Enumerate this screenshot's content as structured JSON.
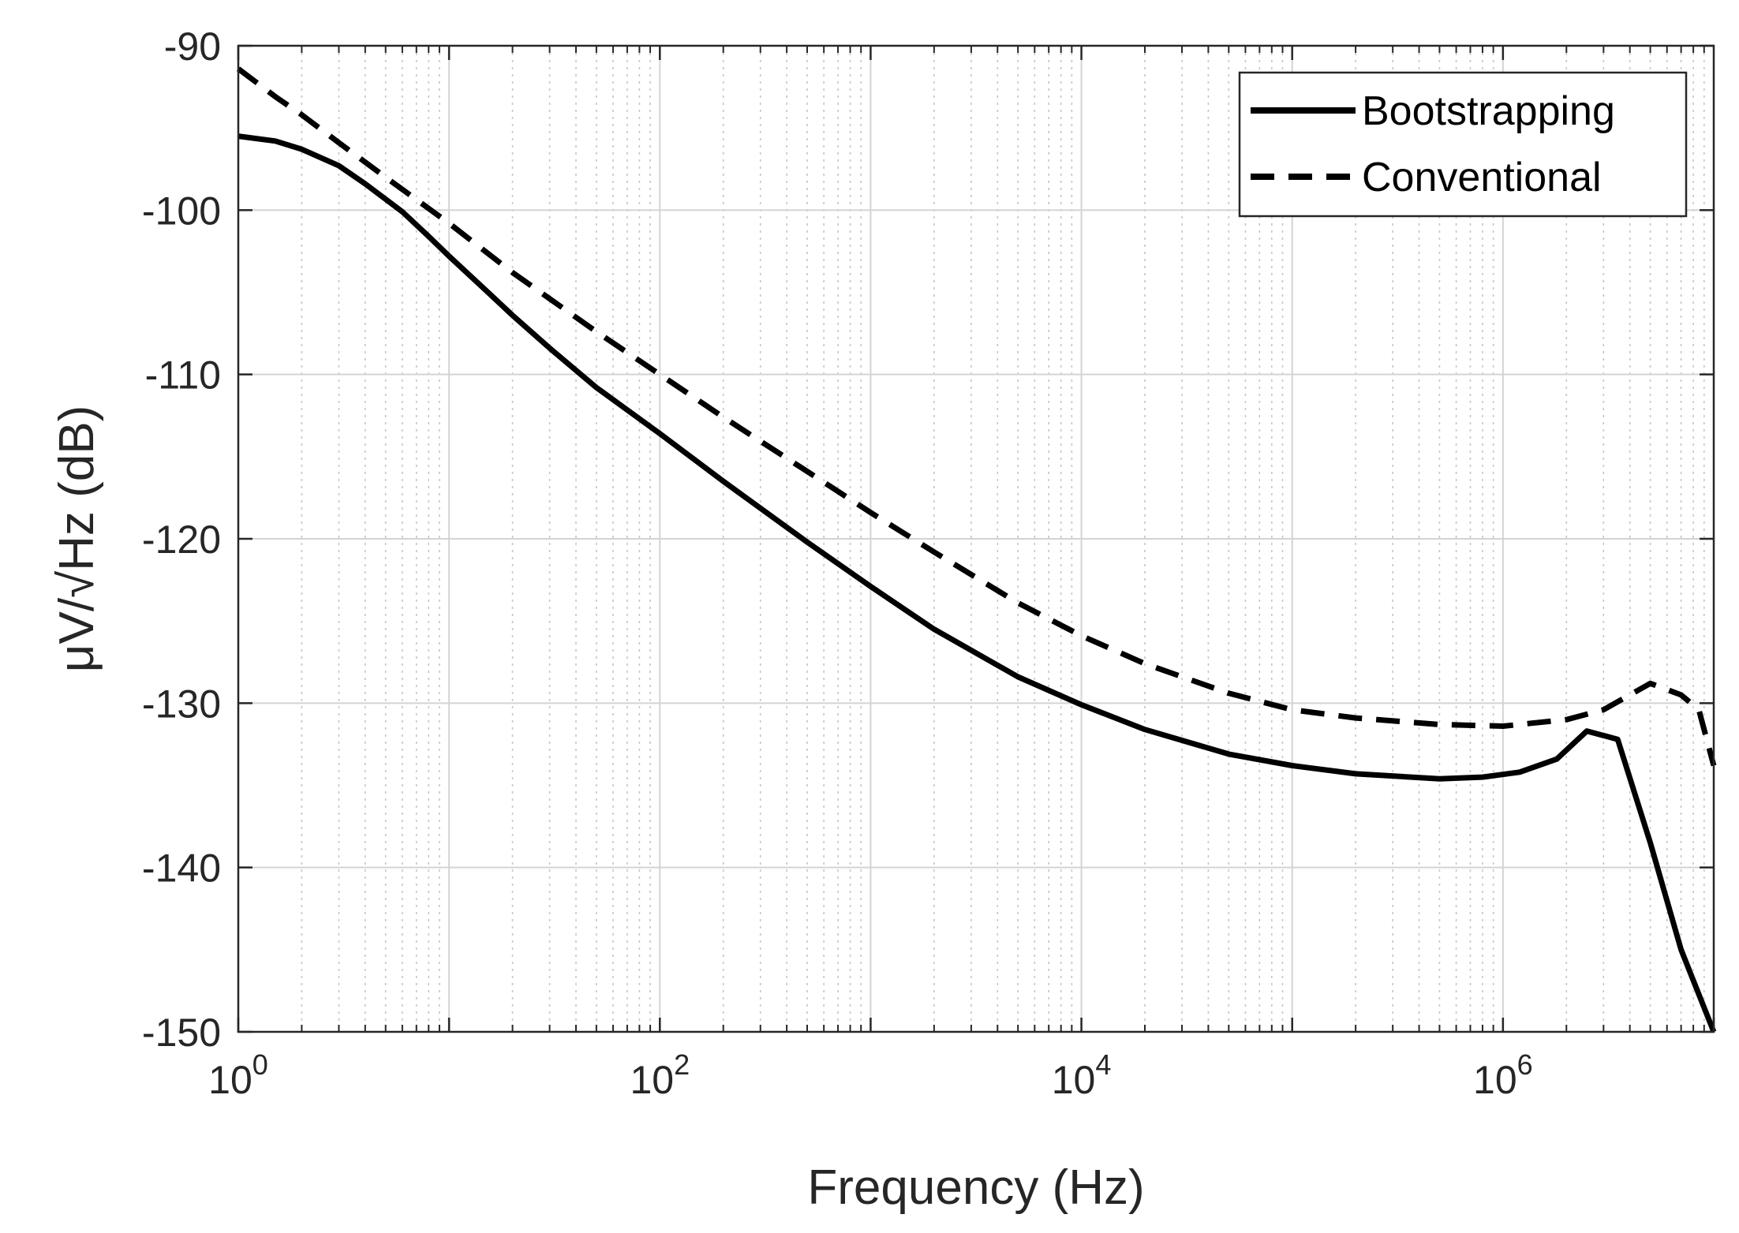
{
  "chart_data": {
    "type": "line",
    "title": "",
    "xlabel": "Frequency (Hz)",
    "ylabel": "μV/√Hz (dB)",
    "x_scale": "log",
    "xlim": [
      1,
      10000000
    ],
    "ylim": [
      -150,
      -90
    ],
    "x_ticks": [
      {
        "value": 1,
        "base": "10",
        "exp": "0"
      },
      {
        "value": 100,
        "base": "10",
        "exp": "2"
      },
      {
        "value": 10000,
        "base": "10",
        "exp": "4"
      },
      {
        "value": 1000000,
        "base": "10",
        "exp": "6"
      }
    ],
    "y_ticks": [
      "-90",
      "-100",
      "-110",
      "-120",
      "-130",
      "-140",
      "-150"
    ],
    "grid": true,
    "legend_position": "top-right",
    "series": [
      {
        "name": "Bootstrapping",
        "style": "solid",
        "color": "#000000",
        "x": [
          1,
          1.5,
          2,
          3,
          4,
          6,
          8,
          10,
          15,
          20,
          30,
          50,
          100,
          200,
          500,
          1000,
          2000,
          5000,
          10000,
          20000,
          50000,
          100000,
          200000,
          500000,
          800000,
          1200000,
          1800000,
          2500000,
          3500000,
          5000000,
          7000000,
          10000000
        ],
        "y": [
          -95.5,
          -95.8,
          -96.3,
          -97.3,
          -98.4,
          -100.1,
          -101.6,
          -102.8,
          -104.9,
          -106.4,
          -108.4,
          -110.8,
          -113.6,
          -116.5,
          -120.2,
          -122.9,
          -125.5,
          -128.4,
          -130.1,
          -131.6,
          -133.1,
          -133.8,
          -134.3,
          -134.6,
          -134.5,
          -134.2,
          -133.4,
          -131.7,
          -132.2,
          -138.5,
          -145.0,
          -150.0
        ]
      },
      {
        "name": "Conventional",
        "style": "dashed",
        "color": "#000000",
        "x": [
          1,
          1.5,
          2,
          3,
          5,
          8,
          10,
          20,
          50,
          100,
          200,
          500,
          1000,
          2000,
          5000,
          10000,
          20000,
          50000,
          100000,
          200000,
          500000,
          1000000,
          2000000,
          3000000,
          5000000,
          7000000,
          8500000,
          10000000
        ],
        "y": [
          -91.4,
          -93.1,
          -94.2,
          -95.9,
          -98.0,
          -99.9,
          -100.8,
          -103.8,
          -107.4,
          -110.0,
          -112.6,
          -115.9,
          -118.4,
          -120.8,
          -123.9,
          -125.9,
          -127.6,
          -129.4,
          -130.4,
          -130.9,
          -131.3,
          -131.4,
          -131.0,
          -130.4,
          -128.8,
          -129.5,
          -130.4,
          -133.8
        ]
      }
    ]
  }
}
